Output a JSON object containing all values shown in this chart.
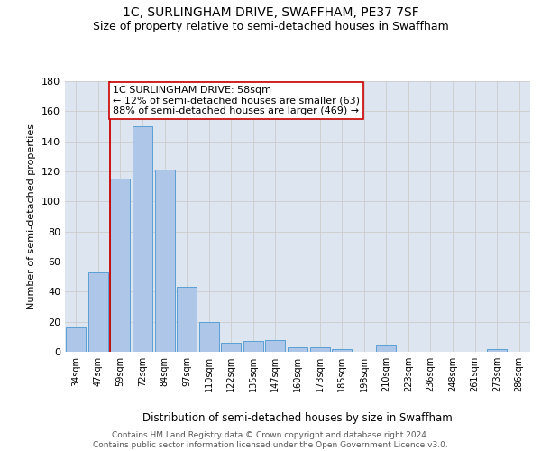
{
  "title": "1C, SURLINGHAM DRIVE, SWAFFHAM, PE37 7SF",
  "subtitle": "Size of property relative to semi-detached houses in Swaffham",
  "xlabel": "Distribution of semi-detached houses by size in Swaffham",
  "ylabel": "Number of semi-detached properties",
  "footnote": "Contains HM Land Registry data © Crown copyright and database right 2024.\nContains public sector information licensed under the Open Government Licence v3.0.",
  "categories": [
    "34sqm",
    "47sqm",
    "59sqm",
    "72sqm",
    "84sqm",
    "97sqm",
    "110sqm",
    "122sqm",
    "135sqm",
    "147sqm",
    "160sqm",
    "173sqm",
    "185sqm",
    "198sqm",
    "210sqm",
    "223sqm",
    "236sqm",
    "248sqm",
    "261sqm",
    "273sqm",
    "286sqm"
  ],
  "values": [
    16,
    53,
    115,
    150,
    121,
    43,
    20,
    6,
    7,
    8,
    3,
    3,
    2,
    0,
    4,
    0,
    0,
    0,
    0,
    2,
    0
  ],
  "bar_color": "#aec6e8",
  "bar_edge_color": "#5a9fd4",
  "highlight_line_color": "#cc0000",
  "annotation_line1": "1C SURLINGHAM DRIVE: 58sqm",
  "annotation_line2": "← 12% of semi-detached houses are smaller (63)",
  "annotation_line3": "88% of semi-detached houses are larger (469) →",
  "annotation_box_color": "#ffffff",
  "annotation_box_edge_color": "#cc0000",
  "ylim": [
    0,
    180
  ],
  "yticks": [
    0,
    20,
    40,
    60,
    80,
    100,
    120,
    140,
    160,
    180
  ],
  "grid_color": "#cccccc",
  "background_color": "#dde5f0",
  "title_fontsize": 10,
  "subtitle_fontsize": 9,
  "annotation_fontsize": 8,
  "footnote_fontsize": 6.5
}
